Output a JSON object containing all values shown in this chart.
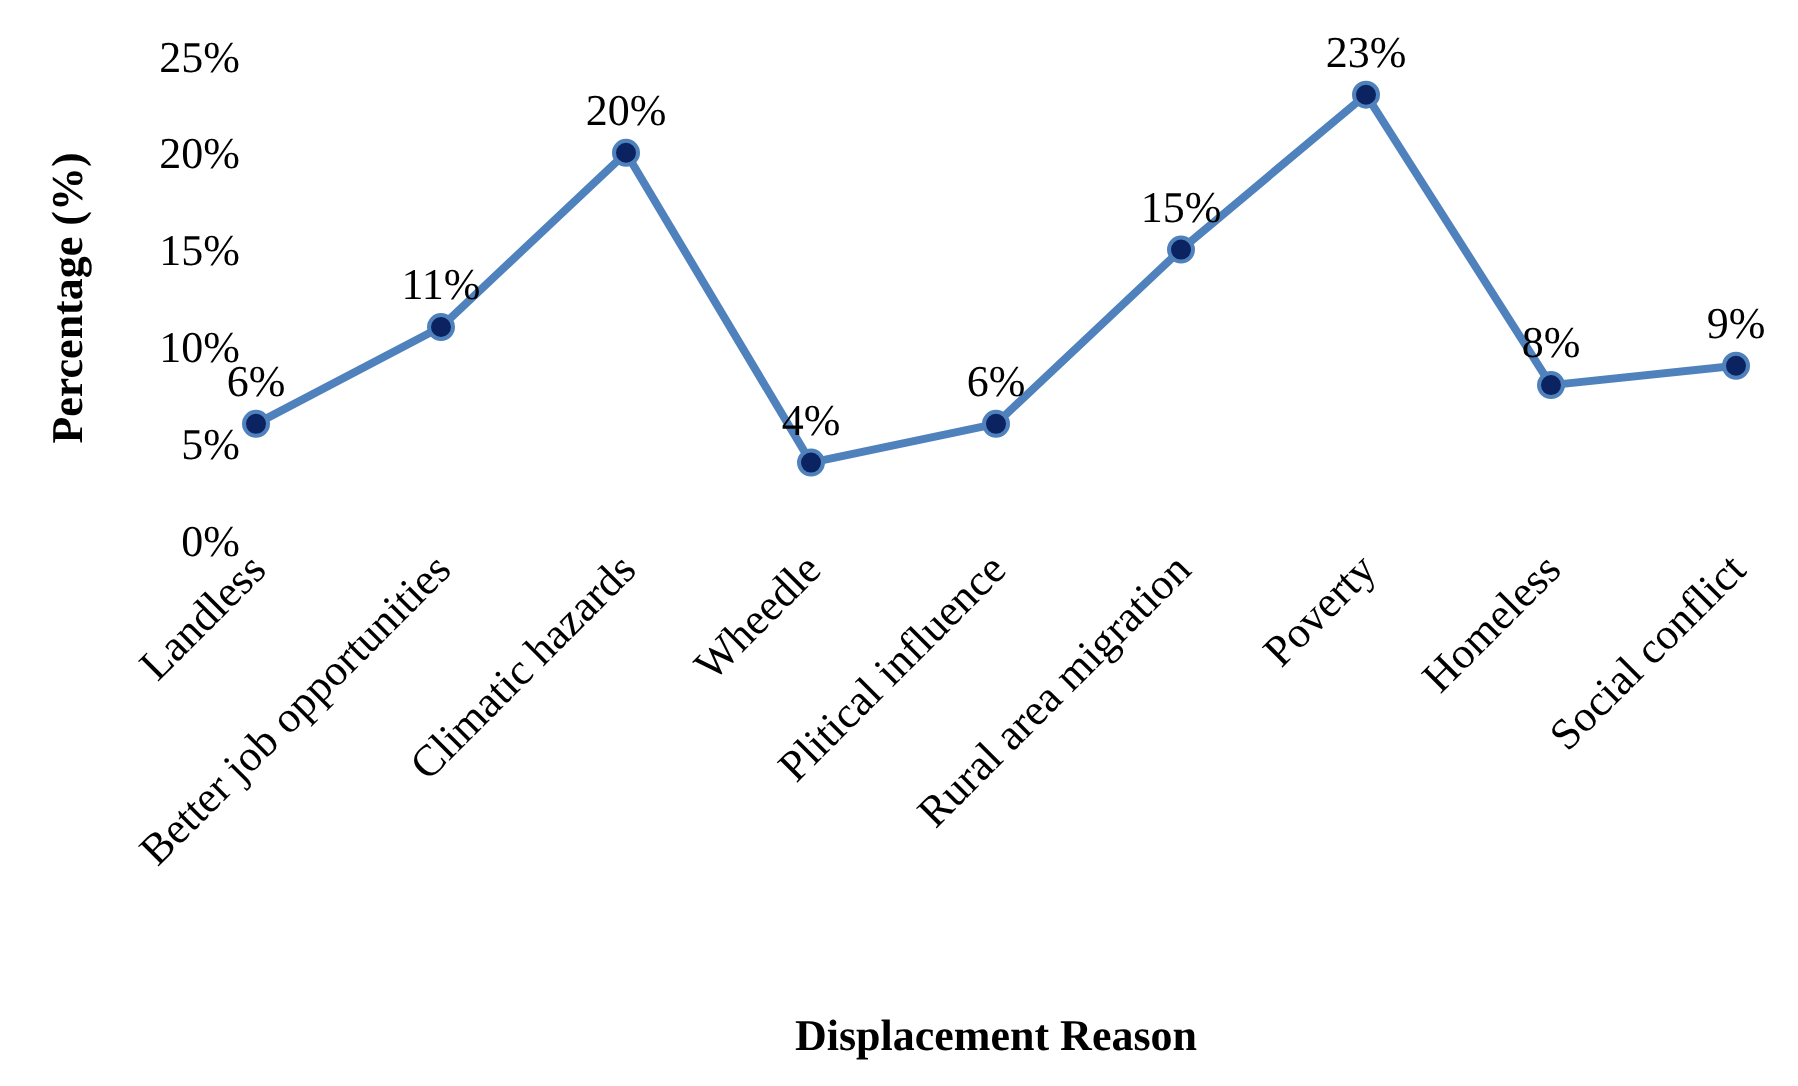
{
  "chart_data": {
    "type": "line",
    "xlabel": "Displacement Reason",
    "ylabel": "Percentage (%)",
    "categories": [
      "Landless",
      "Better job opportunities",
      "Climatic hazards",
      "Wheedle",
      "Plitical influence",
      "Rural area migration",
      "Poverty",
      "Homeless",
      "Social conflict"
    ],
    "series": [
      {
        "color": "#4f81bd",
        "values": [
          6,
          11,
          20,
          4,
          6,
          15,
          23,
          8,
          9
        ],
        "value_labels": [
          "6%",
          "11%",
          "20%",
          "4%",
          "6%",
          "15%",
          "23%",
          "8%",
          "9%"
        ]
      }
    ],
    "ylim": [
      0,
      25
    ],
    "yticks": [
      {
        "value": 0,
        "label": "0%"
      },
      {
        "value": 5,
        "label": "5%"
      },
      {
        "value": 10,
        "label": "10%"
      },
      {
        "value": 15,
        "label": "15%"
      },
      {
        "value": 20,
        "label": "20%"
      },
      {
        "value": 25,
        "label": "25%"
      }
    ],
    "grid": false,
    "legend": false,
    "marker": "circle",
    "line_style": "solid"
  }
}
